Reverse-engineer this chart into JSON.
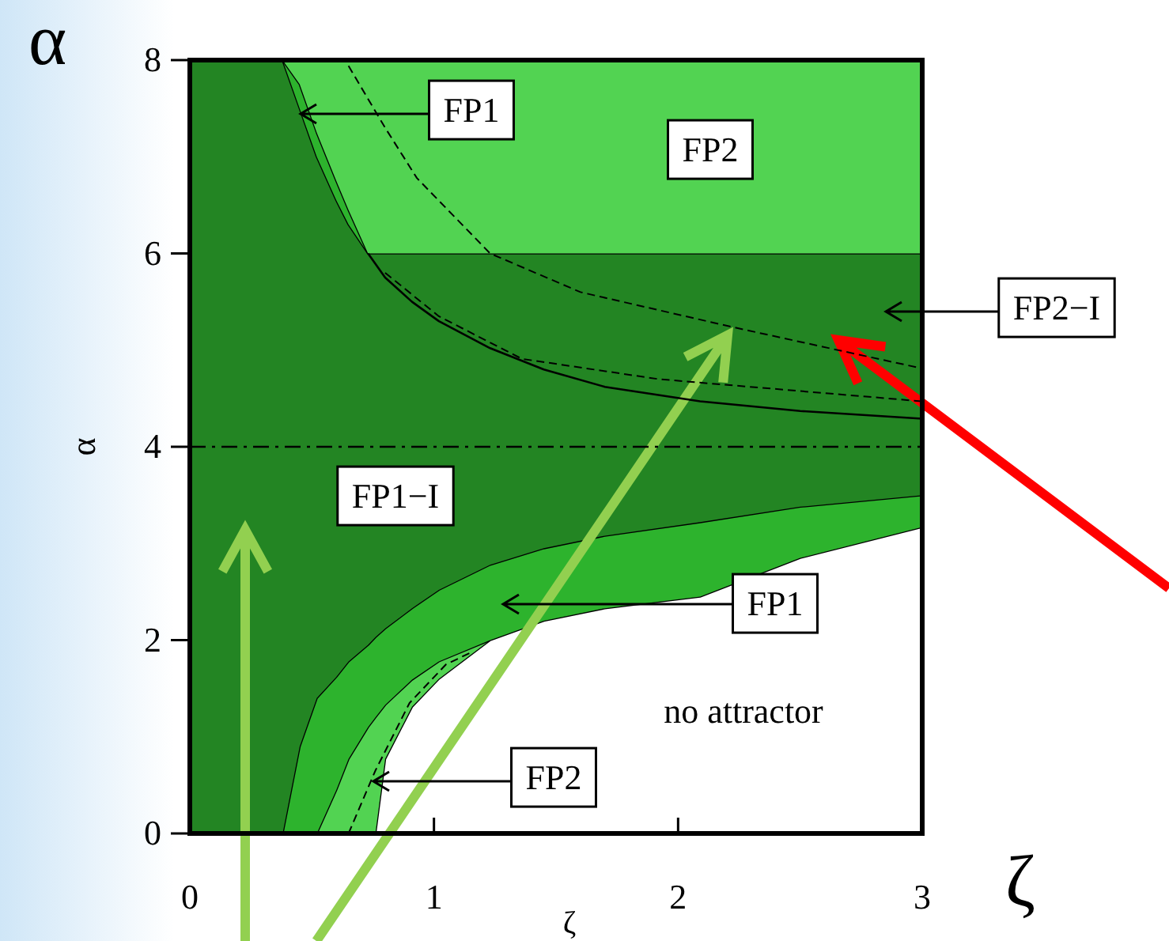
{
  "chart_data": {
    "type": "area",
    "stacked": true,
    "xlabel": "ζ",
    "ylabel": "α",
    "x": [
      0,
      0.38,
      0.45,
      0.52,
      0.6,
      0.65,
      0.73,
      0.76,
      0.8,
      0.91,
      1.02,
      1.23,
      1.45,
      1.7,
      2.09,
      2.5,
      3
    ],
    "xlim": [
      0,
      3
    ],
    "xticks": [
      0,
      1,
      2,
      3
    ],
    "ylim": [
      0,
      8
    ],
    "yticks": [
      0,
      2,
      4,
      6,
      8
    ],
    "series": [
      {
        "color": "#ffffff",
        "values": [
          null,
          null,
          null,
          null,
          null,
          null,
          null,
          0,
          0.77,
          1.31,
          1.6,
          2.0,
          2.2,
          2.33,
          2.45,
          2.85,
          3.17
        ]
      },
      {
        "color": "#52d352",
        "values": [
          null,
          null,
          null,
          0,
          0.45,
          0.77,
          1.1,
          1.2,
          0.56,
          0.28,
          0.18,
          0,
          null,
          null,
          null,
          null,
          null
        ]
      },
      {
        "color": "#2db32d",
        "values": [
          null,
          0,
          0.9,
          1.4,
          1.17,
          1.01,
          0.85,
          0.83,
          0.79,
          0.74,
          0.74,
          0.78,
          0.75,
          0.75,
          0.77,
          0.53,
          0.33
        ]
      },
      {
        "color": "#238523",
        "values": [
          8,
          8,
          6.6,
          5.6,
          4.93,
          4.52,
          4.05,
          3.97,
          3.88,
          3.67,
          3.48,
          3.22,
          3.05,
          2.92,
          2.78,
          2.62,
          2.5
        ]
      },
      {
        "color": "#2db32d",
        "values": [
          null,
          0,
          0.25,
          0.25,
          0.2,
          0.15,
          0,
          null,
          null,
          null,
          null,
          null,
          null,
          null,
          null,
          null,
          null
        ]
      },
      {
        "color": "#52d352",
        "values": [
          null,
          0,
          0.25,
          0.75,
          1.25,
          1.55,
          2,
          2,
          2,
          2,
          2,
          2,
          2,
          2,
          2,
          2,
          2
        ]
      },
      {
        "type": "line",
        "line_style": "solid",
        "color": "#000000",
        "x": [
          0.73,
          0.8,
          0.91,
          1.02,
          1.23,
          1.45,
          1.7,
          2.09,
          2.5,
          3
        ],
        "values": [
          6.0,
          5.75,
          5.5,
          5.3,
          5.02,
          4.8,
          4.62,
          4.47,
          4.37,
          4.29
        ]
      },
      {
        "type": "line",
        "line_style": "dashed",
        "color": "#000000",
        "x": [
          0.65,
          0.8,
          0.93,
          1.23,
          1.6,
          2.22,
          3
        ],
        "values": [
          7.94,
          7.3,
          6.78,
          6.0,
          5.6,
          5.24,
          4.81
        ]
      },
      {
        "type": "line",
        "line_style": "dashed",
        "color": "#000000",
        "x": [
          0.8,
          1.02,
          1.36,
          1.92,
          3
        ],
        "values": [
          5.8,
          5.35,
          4.91,
          4.7,
          4.47
        ]
      },
      {
        "type": "line",
        "line_style": "dashed",
        "color": "#000000",
        "x": [
          0.65,
          0.76,
          0.9,
          1.05,
          1.15
        ],
        "values": [
          0,
          0.65,
          1.35,
          1.75,
          1.87
        ]
      }
    ],
    "ref_lines": [
      {
        "axis": "y",
        "value": 4,
        "color": "#000000",
        "line_style": "dashed"
      }
    ],
    "annotations": [
      "FP1",
      "FP2",
      "FP2−I",
      "FP1−I",
      "FP1",
      "FP2",
      "no attractor",
      "α",
      "ζ"
    ]
  }
}
